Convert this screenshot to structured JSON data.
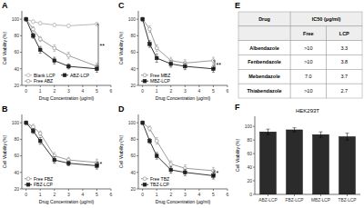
{
  "chart_data": [
    {
      "type": "line",
      "panel_label": "A",
      "xlabel": "Drug Concentration (μg/ml)",
      "ylabel": "Cell Viability (%)",
      "x": [
        0,
        0.5,
        1,
        2,
        3,
        5
      ],
      "series": [
        {
          "name": "Blank LCP",
          "color": "#b0b0b0",
          "marker": "open-circle",
          "values": [
            100,
            97,
            95,
            93,
            92,
            94
          ],
          "errors": [
            1,
            2,
            2,
            2,
            2,
            2
          ]
        },
        {
          "name": "Free ABZ",
          "color": "#909090",
          "marker": "open-circle",
          "values": [
            100,
            88,
            76,
            65,
            56,
            43
          ],
          "errors": [
            2,
            3,
            3,
            4,
            4,
            4
          ]
        },
        {
          "name": "ABZ-LCP",
          "color": "#202020",
          "marker": "square",
          "values": [
            100,
            80,
            63,
            50,
            43,
            40
          ],
          "errors": [
            2,
            3,
            4,
            4,
            3,
            4
          ]
        }
      ],
      "annotations": [
        {
          "text": "**",
          "x": 5.1,
          "y": [
            42,
            94
          ]
        }
      ],
      "xlim": [
        -0.3,
        6
      ],
      "xticks": [
        0,
        1,
        2,
        3,
        4,
        5,
        6
      ],
      "ylim": [
        20,
        110
      ],
      "yticks": [
        20,
        40,
        60,
        80,
        100
      ],
      "legend": "lower-left"
    },
    {
      "type": "line",
      "panel_label": "B",
      "xlabel": "Drug Concentration (μg/ml)",
      "ylabel": "Cell Viability (%)",
      "x": [
        0,
        0.5,
        1,
        2,
        3,
        5
      ],
      "series": [
        {
          "name": "Free FBZ",
          "color": "#909090",
          "marker": "open-circle",
          "values": [
            100,
            95,
            87,
            60,
            55,
            52
          ],
          "errors": [
            2,
            3,
            3,
            4,
            3,
            4
          ]
        },
        {
          "name": "FBZ-LCP",
          "color": "#202020",
          "marker": "square",
          "values": [
            100,
            90,
            78,
            55,
            51,
            48
          ],
          "errors": [
            2,
            3,
            4,
            4,
            3,
            4
          ]
        }
      ],
      "annotations": [
        {
          "text": "*",
          "x": 5.1,
          "y": [
            48,
            52
          ]
        }
      ],
      "xlim": [
        -0.3,
        6
      ],
      "xticks": [
        0,
        1,
        2,
        3,
        4,
        5,
        6
      ],
      "ylim": [
        20,
        110
      ],
      "yticks": [
        20,
        40,
        60,
        80,
        100
      ],
      "legend": "lower-left"
    },
    {
      "type": "line",
      "panel_label": "C",
      "xlabel": "Drug Concentration (μg/ml)",
      "ylabel": "Cell Viability (%)",
      "x": [
        0,
        0.5,
        1,
        2,
        3,
        5
      ],
      "series": [
        {
          "name": "Free MBZ",
          "color": "#909090",
          "marker": "open-circle",
          "values": [
            100,
            88,
            65,
            50,
            47,
            50
          ],
          "errors": [
            2,
            4,
            4,
            4,
            4,
            4
          ]
        },
        {
          "name": "MBZ-LCP",
          "color": "#202020",
          "marker": "square",
          "values": [
            100,
            70,
            53,
            46,
            43,
            40
          ],
          "errors": [
            2,
            4,
            5,
            4,
            4,
            4
          ]
        }
      ],
      "annotations": [
        {
          "text": "**",
          "x": 5.1,
          "y": [
            40,
            50
          ]
        }
      ],
      "xlim": [
        -0.3,
        6
      ],
      "xticks": [
        0,
        1,
        2,
        3,
        4,
        5,
        6
      ],
      "ylim": [
        20,
        110
      ],
      "yticks": [
        20,
        40,
        60,
        80,
        100
      ],
      "legend": "lower-left"
    },
    {
      "type": "line",
      "panel_label": "D",
      "xlabel": "Drug Concentration (μg/ml)",
      "ylabel": "Cell Viability (%)",
      "x": [
        0,
        0.5,
        1,
        2,
        3,
        5
      ],
      "series": [
        {
          "name": "Free TBZ",
          "color": "#909090",
          "marker": "open-circle",
          "values": [
            100,
            93,
            78,
            50,
            45,
            42
          ],
          "errors": [
            2,
            3,
            4,
            4,
            4,
            4
          ]
        },
        {
          "name": "TBZ-LCP",
          "color": "#202020",
          "marker": "square",
          "values": [
            100,
            78,
            60,
            43,
            40,
            36
          ],
          "errors": [
            2,
            3,
            4,
            4,
            4,
            4
          ]
        }
      ],
      "annotations": [
        {
          "text": "*",
          "x": 5.1,
          "y": [
            36,
            42
          ]
        }
      ],
      "xlim": [
        -0.3,
        6
      ],
      "xticks": [
        0,
        1,
        2,
        3,
        4,
        5,
        6
      ],
      "ylim": [
        20,
        110
      ],
      "yticks": [
        20,
        40,
        60,
        80,
        100
      ],
      "legend": "lower-left"
    },
    {
      "type": "table",
      "panel_label": "E",
      "columns": [
        "Drug",
        "IC50 (μg/ml)"
      ],
      "categories": [
        "Albendazole",
        "Fenbendazole",
        "Mebendazole",
        "Thiabendazole"
      ],
      "series": [
        {
          "name": "Free",
          "values": [
            ">10",
            ">10",
            "7.0",
            ">10"
          ]
        },
        {
          "name": "LCP",
          "values": [
            "3.3",
            "3.8",
            "3.7",
            "2.7"
          ]
        }
      ]
    },
    {
      "type": "bar",
      "panel_label": "F",
      "title": "HEK293T",
      "ylabel": "Cell Viability (%)",
      "categories": [
        "ABZ-LCP",
        "FBZ-LCP",
        "MBZ-LCP",
        "TBZ-LCP"
      ],
      "values": [
        92,
        95,
        88,
        85
      ],
      "errors": [
        4,
        3,
        4,
        5
      ],
      "color": "#2b2b2b",
      "ylim": [
        0,
        115
      ],
      "yticks": [
        0,
        20,
        40,
        60,
        80,
        100
      ]
    }
  ]
}
